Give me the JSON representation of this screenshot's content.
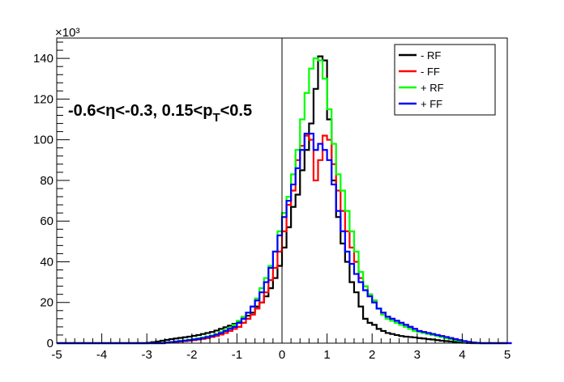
{
  "chart_data": {
    "type": "line",
    "title": "",
    "xlabel": "",
    "ylabel": "",
    "xlim": [
      -5,
      5
    ],
    "ylim": [
      0,
      150
    ],
    "y_multiplier_label": "×10³",
    "x_ticks": [
      "-5",
      "-4",
      "-3",
      "-2",
      "-1",
      "0",
      "1",
      "2",
      "3",
      "4",
      "5"
    ],
    "y_ticks": [
      "0",
      "20",
      "40",
      "60",
      "80",
      "100",
      "120",
      "140"
    ],
    "annotation": {
      "parts": [
        "-0.6<",
        "η",
        "<-0.3, 0.15<p",
        "T",
        "<0.5"
      ]
    },
    "legend": {
      "placement": "top-right",
      "entries": [
        {
          "label": "- RF",
          "color": "#000000"
        },
        {
          "label": "- FF",
          "color": "#ff0000"
        },
        {
          "label": "+ RF",
          "color": "#00ff00"
        },
        {
          "label": "+ FF",
          "color": "#0000ff"
        }
      ]
    },
    "bin_width": 0.1,
    "x_start": -5,
    "series": [
      {
        "name": "- RF",
        "color": "#000000",
        "values": [
          0,
          0,
          0,
          0,
          0,
          0,
          0,
          0,
          0,
          0,
          0,
          0,
          0,
          0,
          0,
          0,
          0,
          0,
          0,
          0,
          0.2,
          0.5,
          0.8,
          1.2,
          1.6,
          2.0,
          2.3,
          2.6,
          2.9,
          3.2,
          3.6,
          4.0,
          4.5,
          5.0,
          5.5,
          6.2,
          7.0,
          7.8,
          8.6,
          9.5,
          10.5,
          12,
          13.5,
          15,
          18,
          20,
          23,
          27,
          32,
          38,
          47,
          57,
          67,
          73,
          85,
          95,
          108,
          125,
          141,
          139,
          110,
          80,
          62,
          49,
          40,
          30,
          25,
          18,
          12,
          10,
          9,
          7,
          6,
          5,
          4.5,
          4,
          3.5,
          3.2,
          3.0,
          2.8,
          2.5,
          2.3,
          2.0,
          1.8,
          1.5,
          1.2,
          1.0,
          0.8,
          0.6,
          0.4,
          0.2,
          0.1,
          0,
          0,
          0,
          0,
          0,
          0,
          0,
          0
        ]
      },
      {
        "name": "- FF",
        "color": "#ff0000",
        "values": [
          0,
          0,
          0,
          0,
          0,
          0,
          0,
          0,
          0,
          0,
          0,
          0,
          0,
          0,
          0,
          0,
          0,
          0,
          0,
          0,
          0,
          0,
          0,
          0,
          0.2,
          0.4,
          0.6,
          0.8,
          1.0,
          1.2,
          1.5,
          1.8,
          2.1,
          2.5,
          3.0,
          3.5,
          4.2,
          5.0,
          6.0,
          7.0,
          8.0,
          10,
          12,
          14,
          17,
          20,
          25,
          31,
          37,
          45,
          55,
          68,
          75,
          90,
          97,
          102,
          100,
          80,
          90,
          102,
          100,
          88,
          75,
          65,
          55,
          47,
          40,
          32,
          28,
          24,
          21,
          17,
          15,
          13,
          12,
          11,
          10,
          9,
          8,
          7,
          6,
          5.5,
          5,
          4.5,
          4,
          3.5,
          3,
          2.5,
          2,
          1.5,
          1.0,
          0.6,
          0.3,
          0.1,
          0,
          0,
          0,
          0,
          0,
          0,
          0
        ]
      },
      {
        "name": "+ RF",
        "color": "#00ff00",
        "values": [
          0,
          0,
          0,
          0,
          0,
          0,
          0,
          0,
          0,
          0,
          0,
          0,
          0,
          0,
          0,
          0,
          0,
          0,
          0,
          0,
          0,
          0,
          0,
          0.1,
          0.3,
          0.5,
          0.8,
          1.1,
          1.4,
          1.7,
          2.0,
          2.4,
          2.8,
          3.3,
          3.8,
          4.5,
          5.5,
          6.5,
          7.5,
          9,
          11,
          13,
          15,
          18,
          22,
          27,
          32,
          38,
          45,
          55,
          64,
          72,
          83,
          95,
          110,
          123,
          135,
          140,
          139,
          130,
          115,
          98,
          83,
          75,
          65,
          55,
          45,
          35,
          28,
          24,
          21,
          17,
          14,
          12,
          11,
          10,
          9,
          8,
          7,
          6,
          5.5,
          5,
          4.5,
          4,
          3.5,
          3,
          2.5,
          2,
          1.5,
          1.1,
          0.7,
          0.4,
          0.2,
          0,
          0,
          0,
          0,
          0,
          0,
          0
        ]
      },
      {
        "name": "+ FF",
        "color": "#0000ff",
        "values": [
          0,
          0,
          0,
          0,
          0,
          0,
          0,
          0,
          0,
          0,
          0,
          0,
          0,
          0,
          0,
          0,
          0,
          0,
          0,
          0,
          0,
          0,
          0,
          0,
          0.3,
          0.5,
          0.8,
          1.0,
          1.2,
          1.5,
          1.8,
          2.1,
          2.5,
          3.0,
          3.5,
          4.2,
          5.0,
          6.0,
          7.0,
          8.0,
          10,
          12,
          15,
          18,
          21,
          25,
          30,
          37,
          45,
          53,
          62,
          70,
          78,
          86,
          95,
          103,
          103,
          95,
          98,
          95,
          90,
          78,
          65,
          55,
          45,
          39,
          34,
          30,
          26,
          23,
          20,
          17,
          15,
          13,
          12,
          11,
          10,
          9,
          8,
          7,
          6,
          5.5,
          5,
          4.5,
          4,
          3.5,
          3,
          2.5,
          2,
          1.5,
          1.0,
          0.6,
          0.3,
          0.1,
          0,
          0,
          0,
          0,
          0,
          0,
          0
        ]
      }
    ],
    "reference_line_x": 0
  }
}
